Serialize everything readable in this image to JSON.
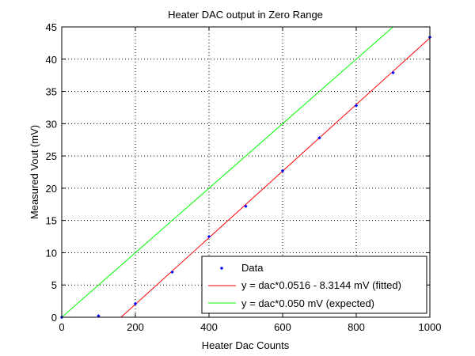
{
  "chart_data": {
    "type": "line",
    "title": "Heater DAC output in Zero Range",
    "xlabel": "Heater Dac Counts",
    "ylabel": "Measured Vout (mV)",
    "xlim": [
      0,
      1000
    ],
    "ylim": [
      0,
      45
    ],
    "xticks": [
      0,
      200,
      400,
      600,
      800,
      1000
    ],
    "yticks": [
      0,
      5,
      10,
      15,
      20,
      25,
      30,
      35,
      40,
      45
    ],
    "grid": true,
    "legend_position": "bottom-right",
    "series": [
      {
        "name": "Data",
        "kind": "markers",
        "color": "#0000ff",
        "x": [
          0,
          100,
          200,
          300,
          400,
          500,
          600,
          700,
          800,
          900,
          1000
        ],
        "y": [
          0,
          0.2,
          2.1,
          7.0,
          12.5,
          17.2,
          22.7,
          27.8,
          32.8,
          37.9,
          43.4
        ]
      },
      {
        "name": "y = dac*0.0516 - 8.3144  mV (fitted)",
        "kind": "line",
        "color": "#ff0000",
        "slope": 0.0516,
        "intercept": -8.3144
      },
      {
        "name": "y = dac*0.050 mV (expected)",
        "kind": "line",
        "color": "#00ff00",
        "slope": 0.05,
        "intercept": 0
      }
    ]
  }
}
